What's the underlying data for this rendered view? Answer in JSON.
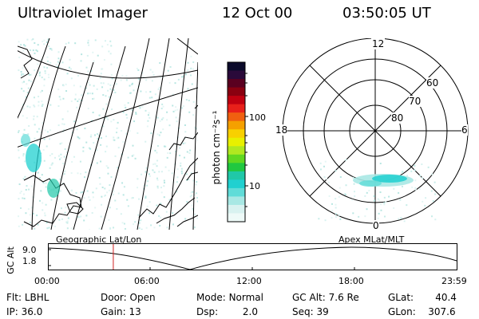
{
  "header": {
    "instrument": "Ultraviolet Imager",
    "date": "12 Oct 00",
    "time": "03:50:05 UT"
  },
  "map_panel": {
    "label": "Geographic Lat/Lon"
  },
  "polar_panel": {
    "label": "Apex MLat/MLT",
    "mlt_labels": [
      "12",
      "18",
      "6",
      "0"
    ],
    "mlat_labels": [
      "60",
      "70",
      "80"
    ]
  },
  "colorbar": {
    "unit_label": "photon cm⁻²s⁻¹",
    "tick_labels": [
      "100",
      "10"
    ],
    "colors": [
      "#0b0a2a",
      "#2a0a3a",
      "#5a0020",
      "#8a0010",
      "#c00010",
      "#e8201a",
      "#f06010",
      "#f5a000",
      "#f8d000",
      "#e8f000",
      "#b0e820",
      "#60d820",
      "#20c840",
      "#20c8a8",
      "#20d0d0",
      "#60dcd8",
      "#a8e8e4",
      "#d8f2f0",
      "#eefaf8"
    ]
  },
  "altitude_plot": {
    "ylabel": "GC Alt",
    "yticks": [
      "9.0",
      "1.8"
    ],
    "xticks": [
      "00:00",
      "06:00",
      "12:00",
      "18:00",
      "23:59"
    ],
    "current_time_marker_hours": 3.84
  },
  "status": {
    "row1": [
      {
        "key": "Flt:",
        "value": "LBHL"
      },
      {
        "key": "Door:",
        "value": "Open"
      },
      {
        "key": "Mode:",
        "value": "Normal"
      },
      {
        "key": "GC Alt:",
        "value": "7.6 Re"
      },
      {
        "key": "GLat:",
        "value": "40.4"
      }
    ],
    "row2": [
      {
        "key": "IP:",
        "value": "36.0"
      },
      {
        "key": "Gain:",
        "value": "13"
      },
      {
        "key": "Dsp:",
        "value": "2.0"
      },
      {
        "key": "Seq:",
        "value": "39"
      },
      {
        "key": "GLon:",
        "value": "307.6"
      }
    ]
  }
}
